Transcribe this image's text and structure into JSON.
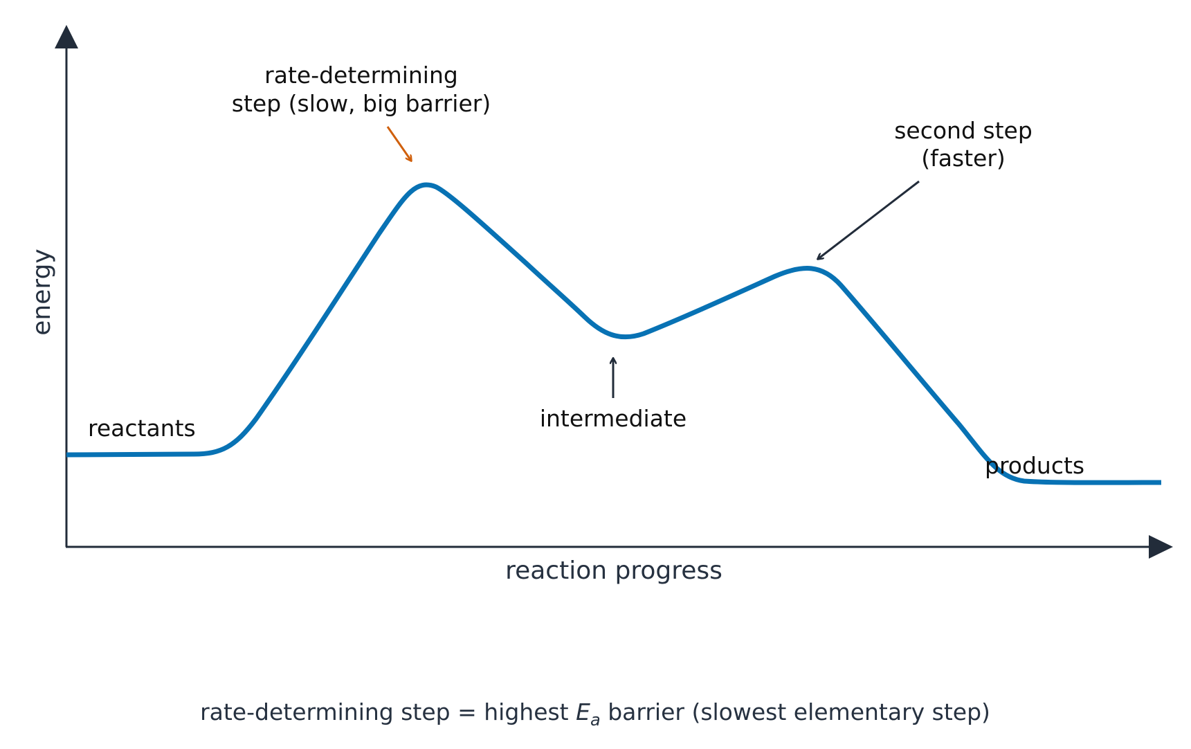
{
  "diagram": {
    "axis_y_label": "energy",
    "axis_x_label": "reaction progress",
    "labels": {
      "reactants": "reactants",
      "products": "products",
      "intermediate": "intermediate",
      "rds_line1": "rate-determining",
      "rds_line2": "step (slow, big barrier)",
      "second_line1": "second step",
      "second_line2": "(faster)"
    },
    "caption": {
      "before": "rate-determining step = highest ",
      "symbol": "E",
      "subscript": "a",
      "after": " barrier (slowest elementary step)"
    }
  },
  "colors": {
    "curve": "#0872b4",
    "axis": "#222c3a",
    "rds_arrow": "#d0600d",
    "annotation_arrow": "#222c3a",
    "text": "#111111"
  }
}
